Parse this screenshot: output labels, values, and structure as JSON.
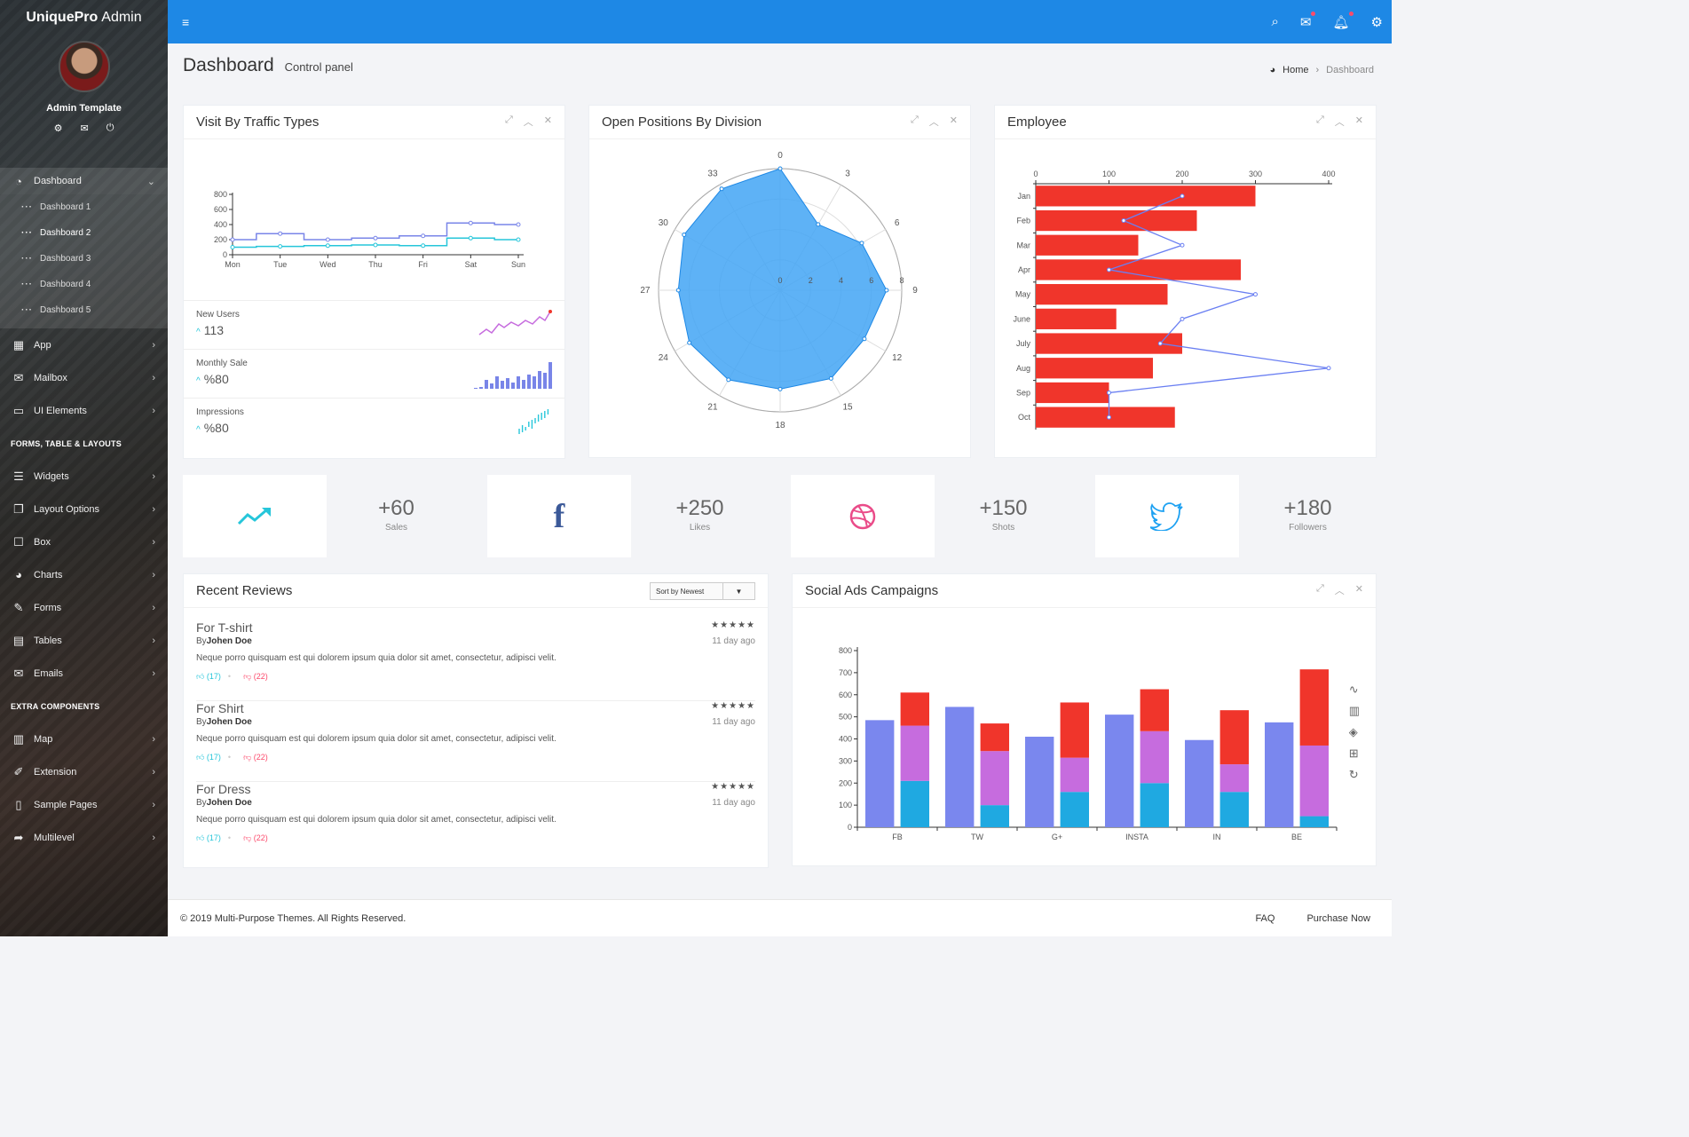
{
  "brand": {
    "bold": "UniquePro",
    "rest": "Admin"
  },
  "profile": {
    "name": "Admin Template",
    "icons": [
      "gear-icon",
      "envelope-icon",
      "power-icon"
    ]
  },
  "sidebar": {
    "dashboard": {
      "label": "Dashboard",
      "icon": "dashboard-icon"
    },
    "sub_items": [
      "Dashboard 1",
      "Dashboard 2",
      "Dashboard 3",
      "Dashboard 4",
      "Dashboard 5"
    ],
    "items_group1": [
      {
        "label": "App",
        "icon": "grid-icon"
      },
      {
        "label": "Mailbox",
        "icon": "envelope-icon"
      },
      {
        "label": "UI Elements",
        "icon": "laptop-icon"
      }
    ],
    "header1": "FORMS, TABLE & LAYOUTS",
    "items_group2": [
      {
        "label": "Widgets",
        "icon": "list-icon"
      },
      {
        "label": "Layout Options",
        "icon": "copy-icon"
      },
      {
        "label": "Box",
        "icon": "square-icon"
      },
      {
        "label": "Charts",
        "icon": "pie-chart-icon"
      },
      {
        "label": "Forms",
        "icon": "edit-icon"
      },
      {
        "label": "Tables",
        "icon": "table-icon"
      },
      {
        "label": "Emails",
        "icon": "envelope-open-icon"
      }
    ],
    "header2": "EXTRA COMPONENTS",
    "items_group3": [
      {
        "label": "Map",
        "icon": "map-icon"
      },
      {
        "label": "Extension",
        "icon": "plug-icon"
      },
      {
        "label": "Sample Pages",
        "icon": "file-icon"
      },
      {
        "label": "Multilevel",
        "icon": "share-icon"
      }
    ]
  },
  "topbar": {
    "icons": [
      "search-icon",
      "envelope-icon",
      "bell-icon",
      "gear-icon"
    ]
  },
  "header": {
    "title": "Dashboard",
    "subtitle": "Control panel",
    "breadcrumb_home": "Home",
    "breadcrumb_current": "Dashboard"
  },
  "traffic_card": {
    "title": "Visit By Traffic Types",
    "stats": [
      {
        "label": "New Users",
        "value": "113"
      },
      {
        "label": "Monthly Sale",
        "value": "%80"
      },
      {
        "label": "Impressions",
        "value": "%80"
      }
    ]
  },
  "positions_card": {
    "title": "Open Positions By Division"
  },
  "employee_card": {
    "title": "Employee"
  },
  "tiles": [
    {
      "value": "+60",
      "label": "Sales",
      "icon": "trending-up-icon",
      "color": "#26c6da"
    },
    {
      "value": "+250",
      "label": "Likes",
      "icon": "facebook-icon",
      "color": "#3b5998"
    },
    {
      "value": "+150",
      "label": "Shots",
      "icon": "dribbble-icon",
      "color": "#ea4c89"
    },
    {
      "value": "+180",
      "label": "Followers",
      "icon": "twitter-icon",
      "color": "#1da1f2"
    }
  ],
  "reviews_card": {
    "title": "Recent Reviews",
    "sort_label": "Sort by Newest",
    "reviews": [
      {
        "title": "For T-shirt",
        "by": "By",
        "author": "Johen Doe",
        "time": "11 day ago",
        "text": "Neque porro quisquam est qui dolorem ipsum quia dolor sit amet, consectetur, adipisci velit.",
        "likes": "(17)",
        "dislikes": "(22)",
        "stars": "★★★★★"
      },
      {
        "title": "For Shirt",
        "by": "By",
        "author": "Johen Doe",
        "time": "11 day ago",
        "text": "Neque porro quisquam est qui dolorem ipsum quia dolor sit amet, consectetur, adipisci velit.",
        "likes": "(17)",
        "dislikes": "(22)",
        "stars": "★★★★★"
      },
      {
        "title": "For Dress",
        "by": "By",
        "author": "Johen Doe",
        "time": "11 day ago",
        "text": "Neque porro quisquam est qui dolorem ipsum quia dolor sit amet, consectetur, adipisci velit.",
        "likes": "(17)",
        "dislikes": "(22)",
        "stars": "★★★★★"
      }
    ]
  },
  "social_card": {
    "title": "Social Ads Campaigns"
  },
  "footer": {
    "copyright": "© 2019 Multi-Purpose Themes. All Rights Reserved.",
    "links": [
      "FAQ",
      "Purchase Now"
    ]
  },
  "chart_data": [
    {
      "type": "line",
      "x": [
        "Mon",
        "Tue",
        "Wed",
        "Thu",
        "Fri",
        "Sat",
        "Sun"
      ],
      "ylim": [
        0,
        800
      ],
      "yticks": [
        0,
        200,
        400,
        600,
        800
      ],
      "step": true,
      "series": [
        {
          "values": [
            200,
            280,
            200,
            220,
            250,
            420,
            400
          ],
          "color": "#7985e8"
        },
        {
          "values": [
            100,
            110,
            120,
            130,
            120,
            220,
            200
          ],
          "color": "#26c6da"
        }
      ]
    },
    {
      "type": "radar",
      "angular_ticks": [
        0,
        3,
        6,
        9,
        12,
        15,
        18,
        21,
        24,
        27,
        30,
        33
      ],
      "radial_ticks": [
        0,
        2,
        4,
        6,
        8
      ],
      "rmax": 8,
      "points": [
        {
          "angle": 0,
          "r": 8
        },
        {
          "angle": 3,
          "r": 5
        },
        {
          "angle": 6,
          "r": 6.2
        },
        {
          "angle": 9,
          "r": 7
        },
        {
          "angle": 12,
          "r": 6.4
        },
        {
          "angle": 15,
          "r": 6.7
        },
        {
          "angle": 18,
          "r": 6.5
        },
        {
          "angle": 21,
          "r": 6.8
        },
        {
          "angle": 24,
          "r": 6.9
        },
        {
          "angle": 27,
          "r": 6.7
        },
        {
          "angle": 30,
          "r": 7.3
        },
        {
          "angle": 33,
          "r": 7.7
        }
      ],
      "color": "#42a5f5"
    },
    {
      "type": "bar",
      "orientation": "horizontal",
      "categories": [
        "Jan",
        "Feb",
        "Mar",
        "Apr",
        "May",
        "June",
        "July",
        "Aug",
        "Sep",
        "Oct"
      ],
      "values": [
        300,
        220,
        140,
        280,
        180,
        110,
        200,
        160,
        100,
        190
      ],
      "line_values": [
        200,
        120,
        200,
        100,
        300,
        200,
        170,
        400,
        100,
        100
      ],
      "xlim": [
        0,
        400
      ],
      "xticks": [
        0,
        100,
        200,
        300,
        400
      ],
      "bar_color": "#f0352b",
      "line_color": "#6a7ff2"
    },
    {
      "type": "bar",
      "stacked": true,
      "categories": [
        "FB",
        "TW",
        "G+",
        "INSTA",
        "IN",
        "BE"
      ],
      "ylim": [
        0,
        800
      ],
      "yticks": [
        0,
        100,
        200,
        300,
        400,
        500,
        600,
        700,
        800
      ],
      "grouped_values": [
        485,
        545,
        410,
        510,
        395,
        475
      ],
      "stack": [
        {
          "values": [
            210,
            100,
            160,
            200,
            160,
            50
          ],
          "color": "#1fa9e1"
        },
        {
          "values": [
            250,
            245,
            155,
            235,
            125,
            320
          ],
          "color": "#c66cde"
        },
        {
          "values": [
            150,
            125,
            250,
            190,
            245,
            345
          ],
          "color": "#f0352b"
        }
      ],
      "grouped_color": "#7a87ee",
      "toolbox": [
        "line-chart-icon",
        "bar-chart-icon",
        "stack-icon",
        "tiled-icon",
        "refresh-icon"
      ]
    }
  ]
}
